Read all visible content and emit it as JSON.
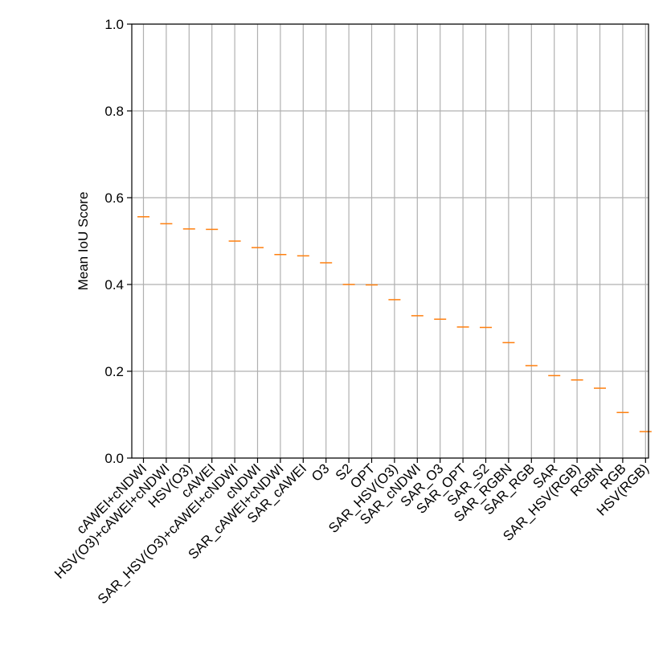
{
  "chart_data": {
    "type": "box",
    "title": "",
    "xlabel": "",
    "ylabel": "Mean IoU Score",
    "ylim": [
      0.0,
      1.0
    ],
    "yticks": [
      "0.0",
      "0.2",
      "0.4",
      "0.6",
      "0.8",
      "1.0"
    ],
    "grid": true,
    "median_color": "#ff7f0e",
    "categories": [
      "cAWEI+cNDWI",
      "HSV(O3)+cAWEI+cNDWI",
      "HSV(O3)",
      "cAWEI",
      "SAR_HSV(O3)+cAWEI+cNDWI",
      "cNDWI",
      "SAR_cAWEI+cNDWI",
      "SAR_cAWEI",
      "O3",
      "S2",
      "OPT",
      "SAR_HSV(O3)",
      "SAR_cNDWI",
      "SAR_O3",
      "SAR_OPT",
      "SAR_S2",
      "SAR_RGBN",
      "SAR_RGB",
      "SAR",
      "SAR_HSV(RGB)",
      "RGBN",
      "RGB",
      "HSV(RGB)"
    ],
    "values": [
      0.556,
      0.54,
      0.528,
      0.527,
      0.5,
      0.485,
      0.469,
      0.466,
      0.45,
      0.4,
      0.399,
      0.365,
      0.328,
      0.32,
      0.302,
      0.301,
      0.266,
      0.213,
      0.19,
      0.18,
      0.161,
      0.105,
      0.061
    ]
  }
}
